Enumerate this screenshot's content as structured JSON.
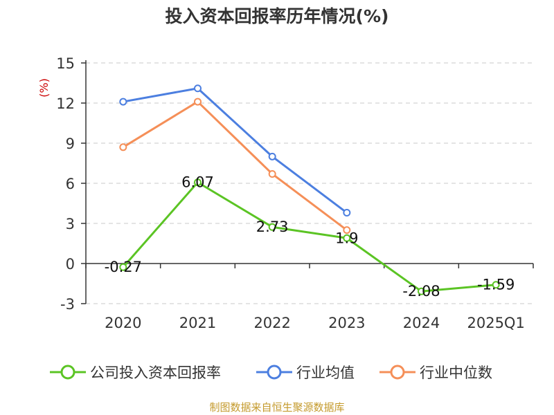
{
  "chart_data": {
    "type": "line",
    "title": "投入资本回报率历年情况(%)",
    "ylabel": "(%)",
    "xlabel": "",
    "categories": [
      "2020",
      "2021",
      "2022",
      "2023",
      "2024",
      "2025Q1"
    ],
    "ylim": [
      -3,
      15
    ],
    "yticks": [
      "15",
      "12",
      "9",
      "6",
      "3",
      "0",
      "-3"
    ],
    "grid": true,
    "legend_position": "bottom",
    "series": [
      {
        "name": "公司投入资本回报率",
        "color": "#5bc424",
        "values": [
          -0.27,
          6.07,
          2.73,
          1.9,
          -2.08,
          -1.59
        ],
        "labels": [
          "-0.27",
          "6.07",
          "2.73",
          "1.9",
          "-2.08",
          "-1.59"
        ]
      },
      {
        "name": "行业均值",
        "color": "#4c7fe0",
        "values": [
          12.1,
          13.1,
          8.0,
          3.8,
          null,
          null
        ]
      },
      {
        "name": "行业中位数",
        "color": "#f58f58",
        "values": [
          8.7,
          12.1,
          6.7,
          2.5,
          null,
          null
        ]
      }
    ]
  },
  "source_text": "制图数据来自恒生聚源数据库"
}
